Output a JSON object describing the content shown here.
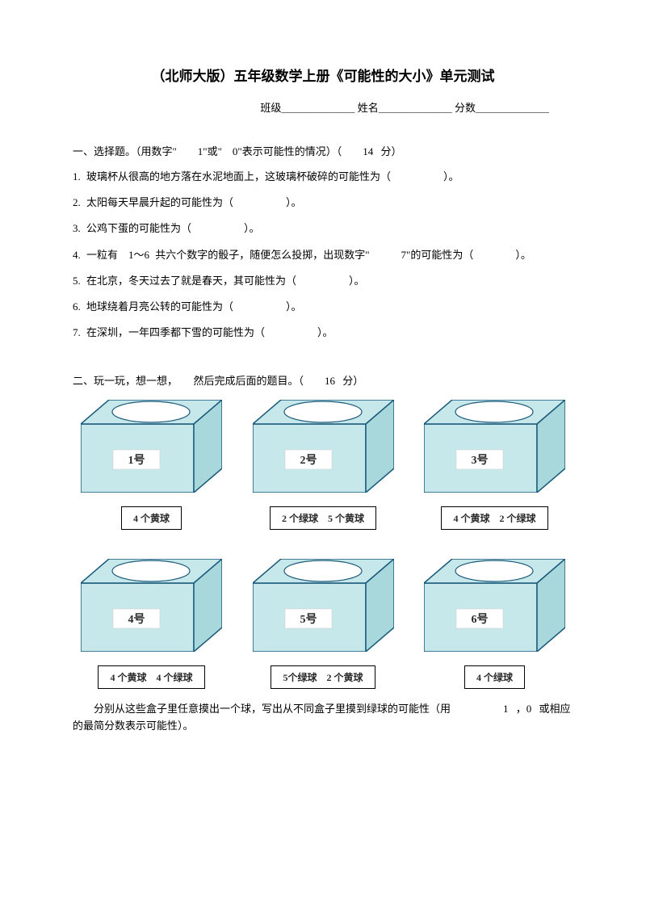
{
  "title": "（北师大版）五年级数学上册《可能性的大小》单元测试",
  "headerInfo": {
    "classLabel": "班级",
    "nameLabel": "姓名",
    "scoreLabel": "分数",
    "blank": "＿＿＿＿＿＿＿"
  },
  "section1": {
    "heading": "一、选择题。（用数字\"　　1\"或\"　0\"表示可能性的情况）（　　14 分）",
    "questions": [
      "1. 玻璃杯从很高的地方落在水泥地面上，这玻璃杯破碎的可能性为（　　　　　）。",
      "2. 太阳每天早晨升起的可能性为（　　　　　）。",
      "3. 公鸡下蛋的可能性为（　　　　　）。",
      "4. 一粒有　1～6 共六个数字的骰子，随便怎么投掷，出现数字\"　　　7\"的可能性为（　　　　）。",
      "5. 在北京，冬天过去了就是春天，其可能性为（　　　　　）。",
      "6. 地球绕着月亮公转的可能性为（　　　　　）。",
      "7. 在深圳，一年四季都下雪的可能性为（　　　　　）。"
    ]
  },
  "section2": {
    "heading": "二、玩一玩，想一想，　　然后完成后面的题目。（　　16 分）",
    "boxes": [
      {
        "label": "1号",
        "caption": "4 个黄球"
      },
      {
        "label": "2号",
        "caption": "2 个绿球　5 个黄球"
      },
      {
        "label": "3号",
        "caption": "4 个黄球　2 个绿球"
      },
      {
        "label": "4号",
        "caption": "4 个黄球　4 个绿球"
      },
      {
        "label": "5号",
        "caption": "5个绿球　2 个黄球"
      },
      {
        "label": "6号",
        "caption": "4 个绿球"
      }
    ],
    "finalText": "分别从这些盒子里任意摸出一个球，写出从不同盒子里摸到绿球的可能性（用　　　　　1 ，0 或相应的最简分数表示可能性）。"
  },
  "boxStyle": {
    "fillLight": "#c6e8eb",
    "fillMedium": "#a8d8dc",
    "stroke": "#1a5a7a",
    "labelBg": "#ffffff",
    "labelColor": "#2a2a2a"
  }
}
